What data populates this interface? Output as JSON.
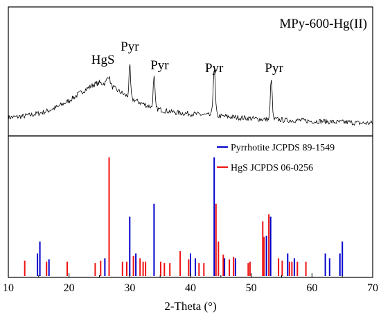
{
  "chart_data": [
    {
      "type": "line",
      "panel": "top",
      "label": "MPy-600-Hg(II)",
      "xlim": [
        10,
        70
      ],
      "peak_labels": [
        {
          "text": "HgS",
          "x": 26.5
        },
        {
          "text": "Pyr",
          "x": 30.0
        },
        {
          "text": "Pyr",
          "x": 34.0
        },
        {
          "text": "Pyr",
          "x": 43.9
        },
        {
          "text": "Pyr",
          "x": 53.3
        }
      ],
      "series": [
        {
          "description": "baseline with broad hump",
          "x": [
            10,
            12,
            14,
            16,
            18,
            20,
            22,
            24,
            25,
            26,
            27,
            28,
            29,
            30,
            32,
            34,
            36,
            38,
            40,
            42,
            44,
            46,
            48,
            50,
            52,
            54,
            56,
            58,
            60,
            62,
            64,
            66,
            68,
            70
          ],
          "y": [
            0.1,
            0.11,
            0.13,
            0.16,
            0.21,
            0.28,
            0.37,
            0.45,
            0.47,
            0.46,
            0.43,
            0.39,
            0.35,
            0.31,
            0.25,
            0.2,
            0.17,
            0.15,
            0.14,
            0.13,
            0.12,
            0.11,
            0.1,
            0.09,
            0.08,
            0.08,
            0.07,
            0.07,
            0.06,
            0.06,
            0.05,
            0.05,
            0.04,
            0.04
          ]
        }
      ],
      "peaks": [
        {
          "x": 26.5,
          "height": 0.1,
          "width": 0.35
        },
        {
          "x": 30.0,
          "height": 0.35,
          "width": 0.18
        },
        {
          "x": 34.0,
          "height": 0.33,
          "width": 0.2
        },
        {
          "x": 43.9,
          "height": 0.5,
          "width": 0.25
        },
        {
          "x": 53.3,
          "height": 0.45,
          "width": 0.2
        }
      ]
    },
    {
      "type": "bar",
      "panel": "bottom",
      "xlabel": "2-Theta (°)",
      "xlim": [
        10,
        70
      ],
      "xticks": [
        10,
        20,
        30,
        40,
        50,
        60,
        70
      ],
      "series": [
        {
          "name": "Pyrrhotite JCPDS 89-1549",
          "color": "#0000cc",
          "x": [
            14.8,
            15.2,
            16.7,
            25.9,
            30.0,
            31.0,
            34.0,
            40.0,
            40.8,
            43.9,
            45.6,
            47.4,
            52.5,
            53.2,
            56.0,
            57.1,
            62.2,
            62.9,
            64.6,
            65.0
          ],
          "values": [
            0.19,
            0.29,
            0.14,
            0.15,
            0.5,
            0.19,
            0.61,
            0.19,
            0.15,
            1.0,
            0.15,
            0.15,
            0.34,
            0.5,
            0.19,
            0.15,
            0.19,
            0.15,
            0.19,
            0.29
          ]
        },
        {
          "name": "HgS JCPDS 06-0256",
          "color": "#ee1111",
          "x": [
            12.7,
            16.3,
            19.7,
            24.3,
            25.2,
            26.6,
            28.8,
            29.5,
            30.6,
            31.7,
            32.2,
            32.6,
            35.1,
            35.7,
            36.6,
            38.3,
            39.7,
            41.4,
            42.2,
            44.2,
            44.6,
            45.4,
            46.4,
            47.1,
            49.5,
            49.8,
            51.9,
            52.1,
            52.9,
            54.5,
            55.1,
            56.3,
            56.7,
            57.6,
            59.0
          ],
          "values": [
            0.13,
            0.12,
            0.12,
            0.11,
            0.13,
            1.0,
            0.12,
            0.12,
            0.17,
            0.15,
            0.12,
            0.12,
            0.12,
            0.11,
            0.11,
            0.21,
            0.14,
            0.11,
            0.11,
            0.61,
            0.29,
            0.18,
            0.14,
            0.16,
            0.11,
            0.12,
            0.46,
            0.33,
            0.52,
            0.15,
            0.13,
            0.12,
            0.12,
            0.12,
            0.12
          ]
        }
      ]
    }
  ]
}
